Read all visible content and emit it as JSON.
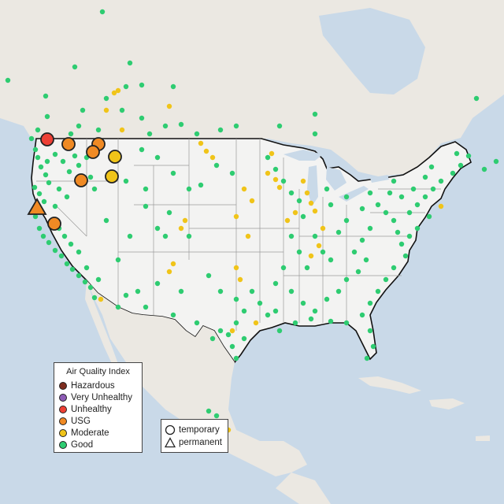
{
  "legend": {
    "title": "Air Quality Index",
    "levels": [
      {
        "label": "Hazardous",
        "color": "#7e2d1f"
      },
      {
        "label": "Very Unhealthy",
        "color": "#8d5bb5"
      },
      {
        "label": "Unhealthy",
        "color": "#ee4035"
      },
      {
        "label": "USG",
        "color": "#f08a24"
      },
      {
        "label": "Moderate",
        "color": "#f0c419"
      },
      {
        "label": "Good",
        "color": "#2ecc71"
      }
    ]
  },
  "monitor_legend": {
    "temporary": "temporary",
    "permanent": "permanent"
  },
  "colors": {
    "water": "#c9d9e8",
    "land": "#ecebe6",
    "us_land": "#f3f3f2",
    "border": "#111111",
    "state_line": "#9a9a9a"
  }
}
